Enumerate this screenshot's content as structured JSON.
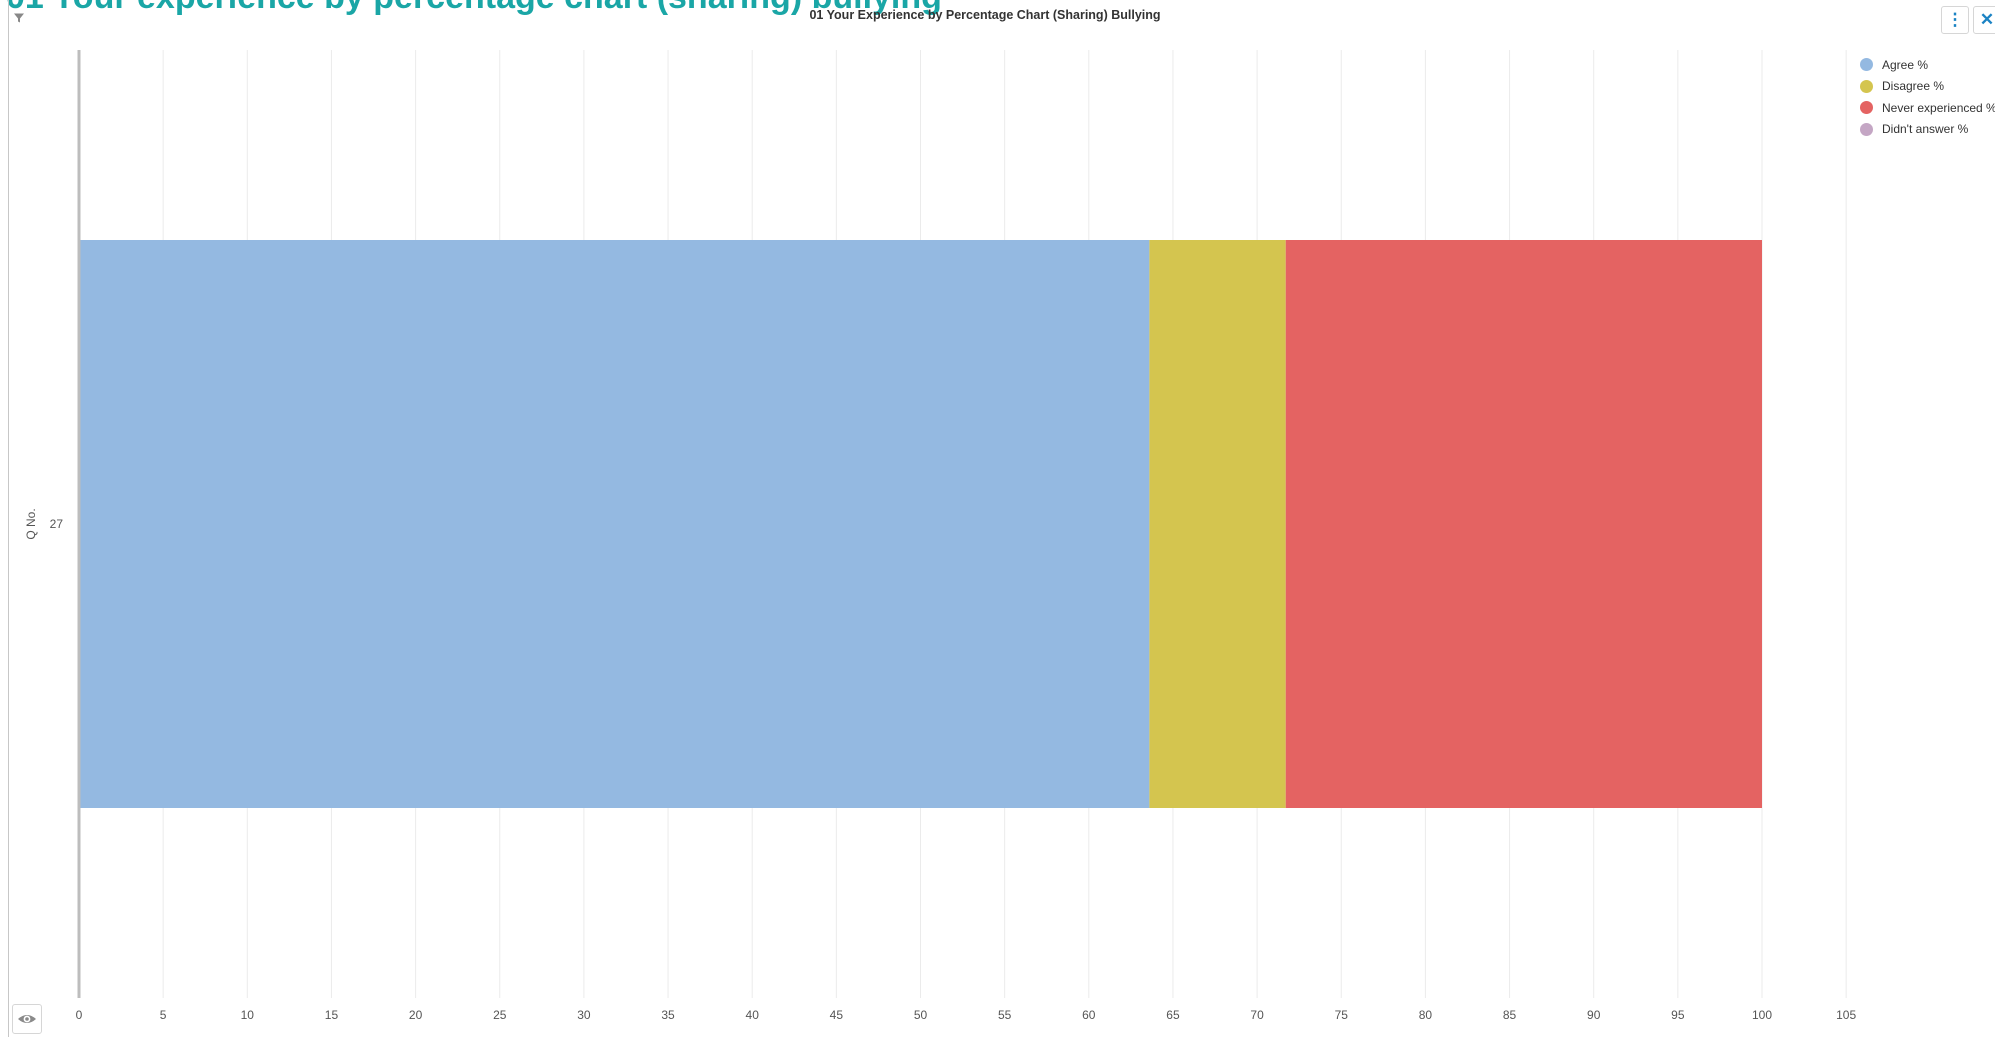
{
  "page": {
    "heading": "01 Your experience by percentage chart (sharing) bullying"
  },
  "icons": {
    "filter": "filter-icon",
    "menu": "kebab-menu-icon",
    "close": "close-icon",
    "visibility": "eye-icon"
  },
  "toolbar": {
    "menu_glyph": "⋮",
    "close_glyph": "✕"
  },
  "chart_data": {
    "type": "bar",
    "orientation": "horizontal",
    "stacked": true,
    "title": "01 Your Experience by Percentage Chart (Sharing) Bullying",
    "ylabel": "Q No.",
    "xlabel": "",
    "categories": [
      "27"
    ],
    "xlim": [
      0,
      105
    ],
    "xticks": [
      0,
      5,
      10,
      15,
      20,
      25,
      30,
      35,
      40,
      45,
      50,
      55,
      60,
      65,
      70,
      75,
      80,
      85,
      90,
      95,
      100,
      105
    ],
    "grid": true,
    "legend_position": "top-right",
    "series": [
      {
        "name": "Agree %",
        "color": "#94b9e1",
        "values": [
          63.6
        ]
      },
      {
        "name": "Disagree %",
        "color": "#d4c54f",
        "values": [
          8.1
        ]
      },
      {
        "name": "Never experienced %",
        "color": "#e46362",
        "values": [
          28.3
        ]
      },
      {
        "name": "Didn't answer %",
        "color": "#c4a6c4",
        "values": [
          0
        ]
      }
    ]
  }
}
